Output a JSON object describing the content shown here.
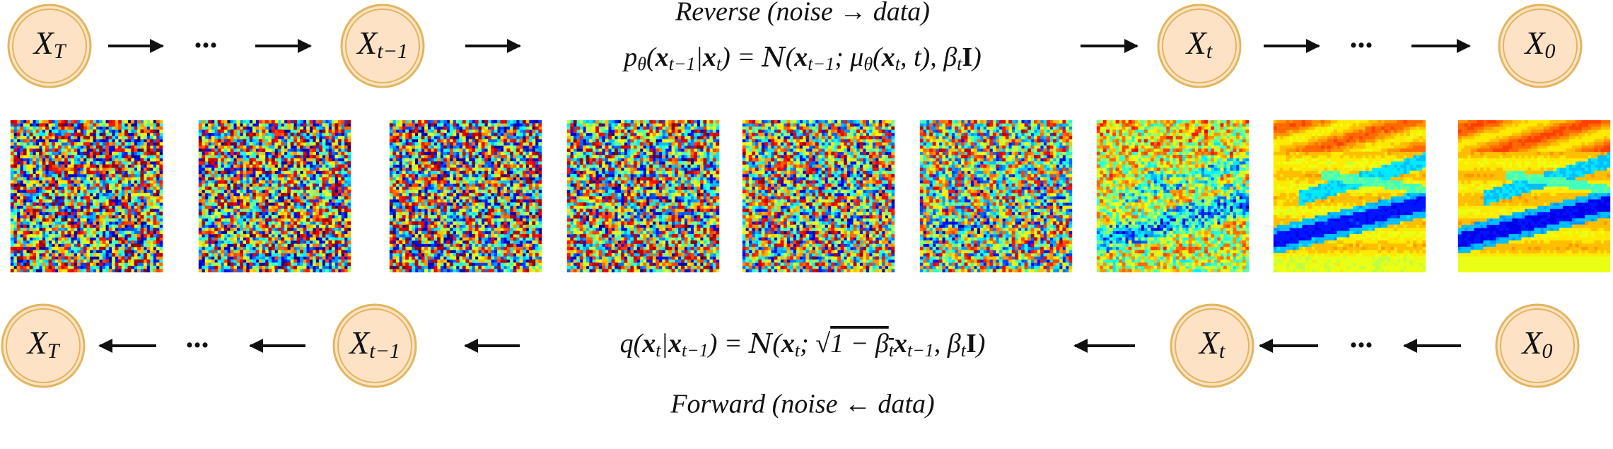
{
  "reverse": {
    "title": "Reverse (noise → data)",
    "formula": [
      {
        "text": "p"
      },
      {
        "text": "θ",
        "sub": true
      },
      {
        "text": "("
      },
      {
        "text": "x",
        "bold": true
      },
      {
        "text": "t−1",
        "sub": true
      },
      {
        "text": "|"
      },
      {
        "text": "x",
        "bold": true
      },
      {
        "text": "t",
        "sub": true
      },
      {
        "text": ") = "
      },
      {
        "text": "N",
        "script": true
      },
      {
        "text": "("
      },
      {
        "text": "x",
        "bold": true
      },
      {
        "text": "t−1",
        "sub": true
      },
      {
        "text": "; μ"
      },
      {
        "text": "θ",
        "sub": true
      },
      {
        "text": "("
      },
      {
        "text": "x",
        "bold": true
      },
      {
        "text": "t",
        "sub": true
      },
      {
        "text": ", t), β"
      },
      {
        "text": "t",
        "sub": true
      },
      {
        "text": "I",
        "bold": true,
        "upright": true
      },
      {
        "text": ")"
      }
    ],
    "nodes": [
      {
        "symbol": "X",
        "subscript": "T"
      },
      {
        "symbol": "X",
        "subscript": "t−1"
      },
      {
        "symbol": "X",
        "subscript": "t"
      },
      {
        "symbol": "X",
        "subscript": "0"
      }
    ],
    "ellipsis": "..."
  },
  "forward": {
    "title": "Forward (noise ← data)",
    "formula": [
      {
        "text": "q("
      },
      {
        "text": "x",
        "bold": true
      },
      {
        "text": "t",
        "sub": true
      },
      {
        "text": "|"
      },
      {
        "text": "x",
        "bold": true
      },
      {
        "text": "t−1",
        "sub": true
      },
      {
        "text": ") = "
      },
      {
        "text": "N",
        "script": true
      },
      {
        "text": "("
      },
      {
        "text": "x",
        "bold": true
      },
      {
        "text": "t",
        "sub": true
      },
      {
        "text": "; √"
      },
      {
        "text": "1 − β",
        "overline": true
      },
      {
        "text": "t",
        "sub": true,
        "overline": true
      },
      {
        "text": "x",
        "bold": true
      },
      {
        "text": "t−1",
        "sub": true
      },
      {
        "text": ", β"
      },
      {
        "text": "t",
        "sub": true
      },
      {
        "text": "I",
        "bold": true,
        "upright": true
      },
      {
        "text": ")"
      }
    ],
    "nodes": [
      {
        "symbol": "X",
        "subscript": "T"
      },
      {
        "symbol": "X",
        "subscript": "t−1"
      },
      {
        "symbol": "X",
        "subscript": "t"
      },
      {
        "symbol": "X",
        "subscript": "0"
      }
    ],
    "ellipsis": "..."
  }
}
